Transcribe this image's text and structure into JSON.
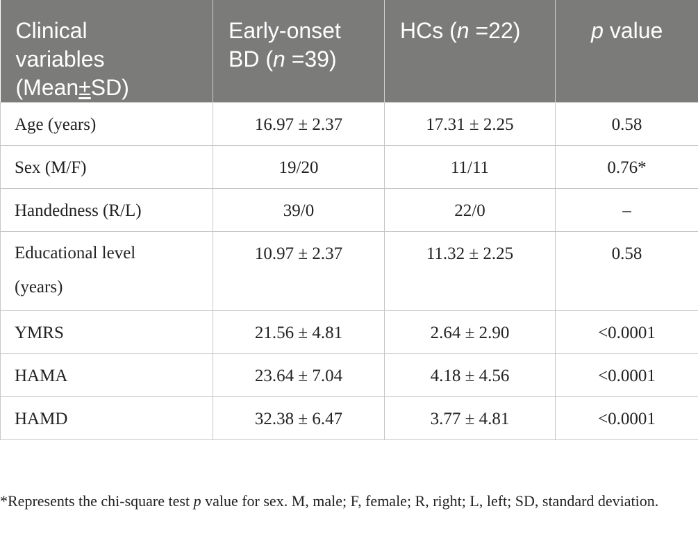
{
  "table": {
    "headers": {
      "col1_line1": "Clinical",
      "col1_line2": "variables",
      "col1_line3_pre": "(Mean",
      "col1_line3_pm": "±",
      "col1_line3_post": "SD)",
      "col2_line1": "Early-onset",
      "col2_line2_pre": "BD (",
      "col2_n": "n",
      "col2_line2_post": " =39)",
      "col3_pre": "HCs (",
      "col3_n": "n",
      "col3_post": " =22)",
      "col4_p": "p",
      "col4_post": " value"
    },
    "rows": [
      {
        "label": "Age (years)",
        "bd": "16.97 ± 2.37",
        "hc": "17.31 ± 2.25",
        "p": "0.58"
      },
      {
        "label": "Sex (M/F)",
        "bd": "19/20",
        "hc": "11/11",
        "p": "0.76*"
      },
      {
        "label": "Handedness (R/L)",
        "bd": "39/0",
        "hc": "22/0",
        "p": "–"
      },
      {
        "label_line1": "Educational level",
        "label_line2": "(years)",
        "bd": "10.97 ± 2.37",
        "hc": "11.32 ± 2.25",
        "p": "0.58"
      },
      {
        "label": "YMRS",
        "bd": "21.56 ± 4.81",
        "hc": "2.64 ± 2.90",
        "p": "<0.0001"
      },
      {
        "label": "HAMA",
        "bd": "23.64 ± 7.04",
        "hc": "4.18 ± 4.56",
        "p": "<0.0001"
      },
      {
        "label": "HAMD",
        "bd": "32.38 ± 6.47",
        "hc": "3.77 ± 4.81",
        "p": "<0.0001"
      }
    ]
  },
  "footnote": {
    "pre": "*Represents the chi-square test ",
    "p": "p",
    "post": " value for sex. M, male; F, female; R, right; L, left; SD, standard deviation."
  }
}
